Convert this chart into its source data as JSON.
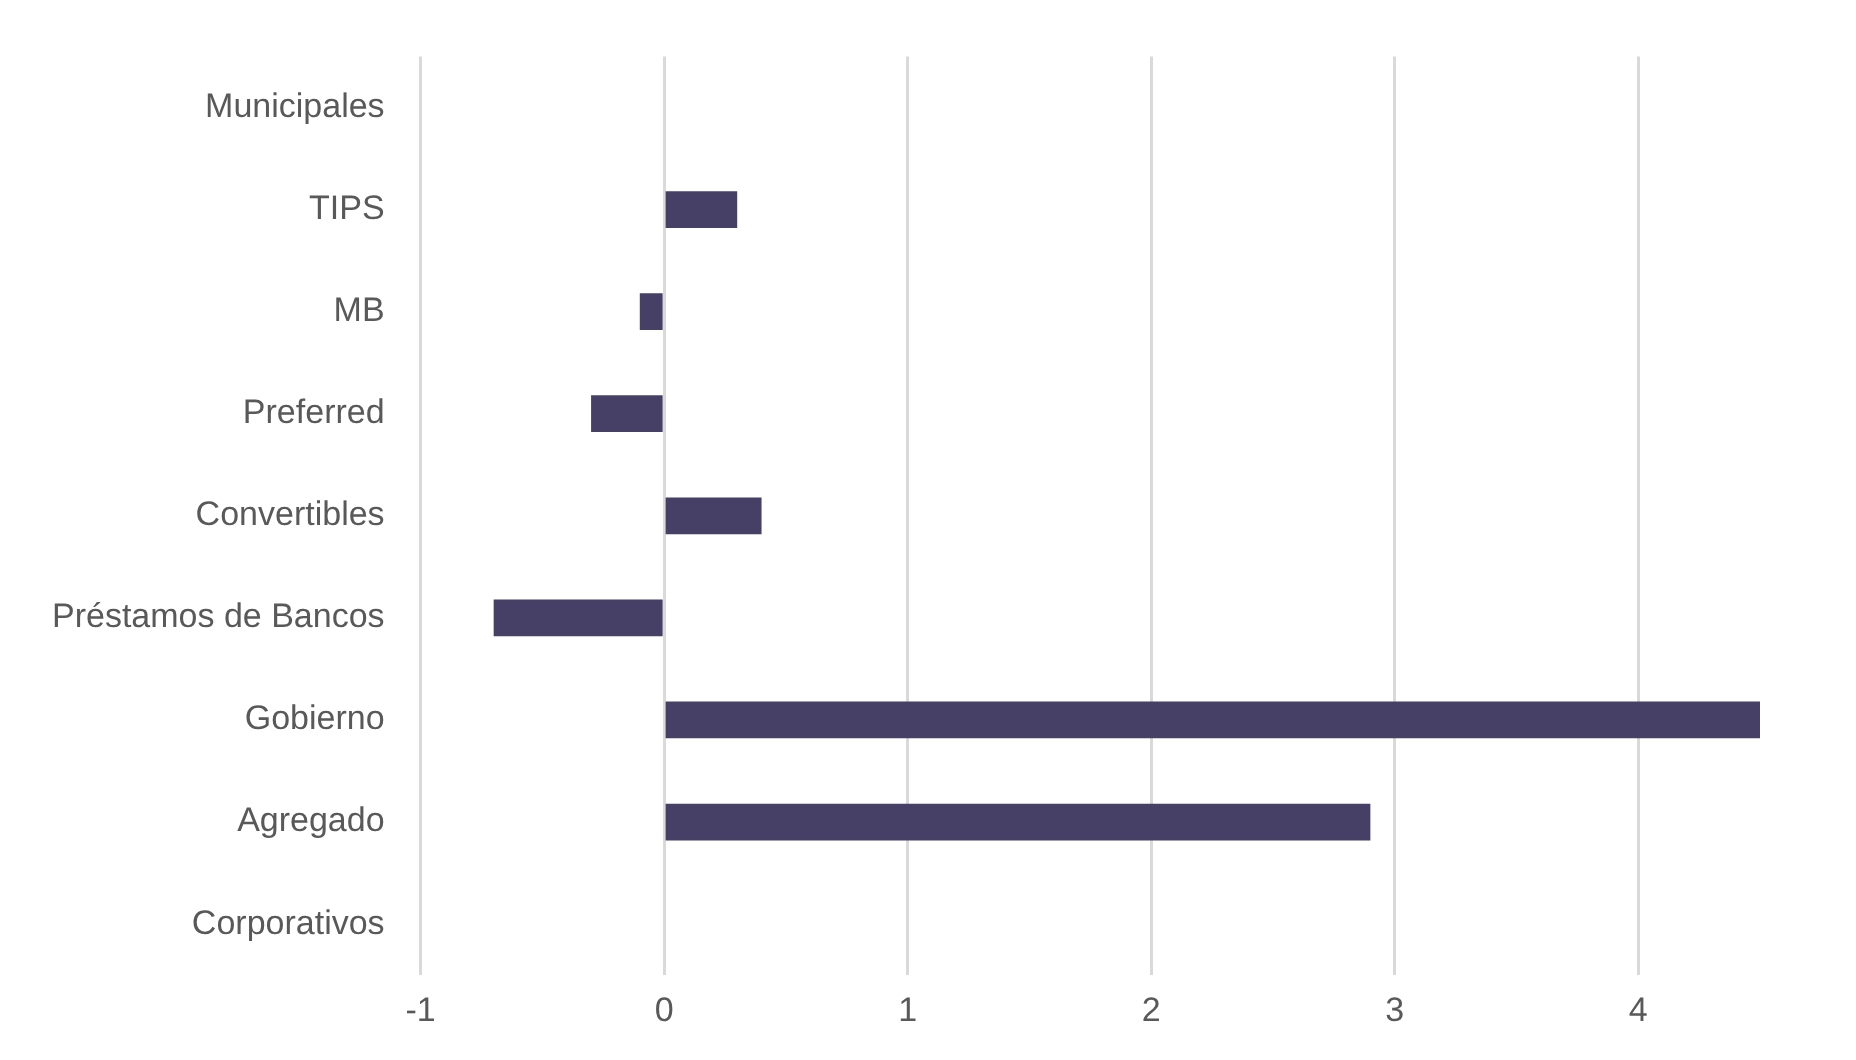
{
  "chart_data": {
    "type": "bar",
    "orientation": "horizontal",
    "categories": [
      "Municipales",
      "TIPS",
      "MB",
      "Preferred",
      "Convertibles",
      "Préstamos de Bancos",
      "Gobierno",
      "Agregado",
      "Corporativos"
    ],
    "values": [
      null,
      0.3,
      -0.1,
      -0.3,
      0.4,
      -0.7,
      4.5,
      2.9,
      null
    ],
    "color": "#463f66",
    "xlim": [
      -1,
      4.5
    ],
    "xticks": [
      -1,
      0,
      1,
      2,
      3,
      4
    ],
    "grid": "x",
    "legend": false
  }
}
